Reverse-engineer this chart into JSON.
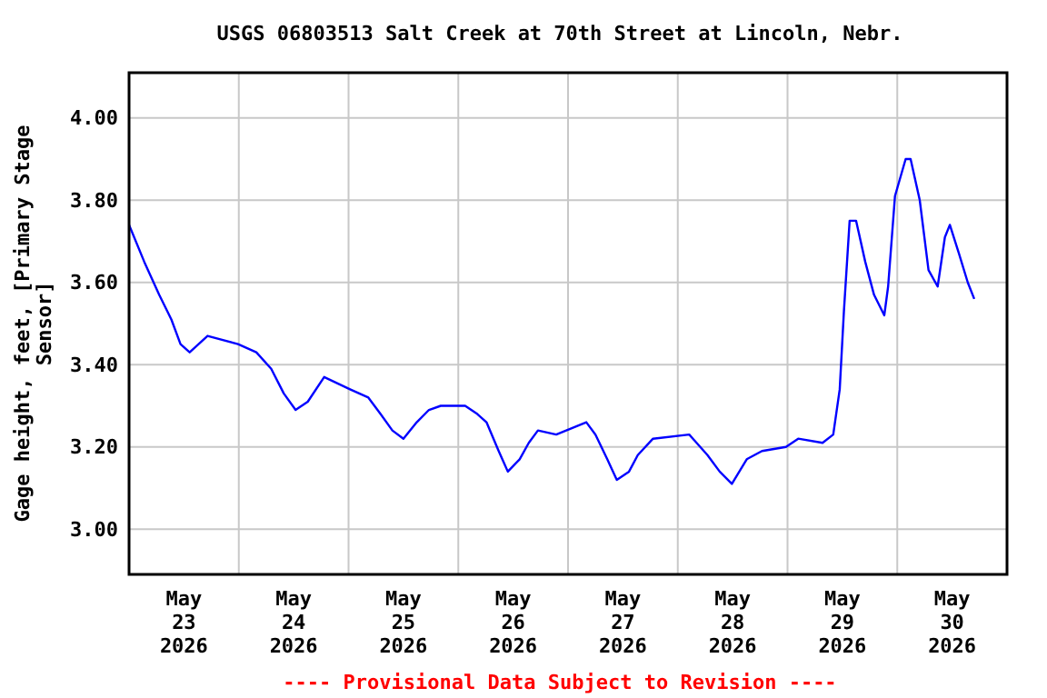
{
  "chart_data": {
    "type": "line",
    "title": "USGS 06803513 Salt Creek at 70th Street at Lincoln, Nebr.",
    "ylabel": "Gage height, feet, [Primary Stage Sensor]",
    "annotations": [
      "---- Provisional Data Subject to Revision ----"
    ],
    "xlim": [
      "2026-05-23T00:00",
      "2026-05-31T00:00"
    ],
    "xticks": [
      {
        "value": "2026-05-23T12:00",
        "label": "May\n23\n2026"
      },
      {
        "value": "2026-05-24T00:00",
        "label": null
      },
      {
        "value": "2026-05-24T12:00",
        "label": "May\n24\n2026"
      },
      {
        "value": "2026-05-25T00:00",
        "label": null
      },
      {
        "value": "2026-05-25T12:00",
        "label": "May\n25\n2026"
      },
      {
        "value": "2026-05-26T00:00",
        "label": null
      },
      {
        "value": "2026-05-26T12:00",
        "label": "May\n26\n2026"
      },
      {
        "value": "2026-05-27T00:00",
        "label": null
      },
      {
        "value": "2026-05-27T12:00",
        "label": "May\n27\n2026"
      },
      {
        "value": "2026-05-28T00:00",
        "label": null
      },
      {
        "value": "2026-05-28T12:00",
        "label": "May\n28\n2026"
      },
      {
        "value": "2026-05-29T00:00",
        "label": null
      },
      {
        "value": "2026-05-29T12:00",
        "label": "May\n29\n2026"
      },
      {
        "value": "2026-05-30T00:00",
        "label": null
      },
      {
        "value": "2026-05-30T12:00",
        "label": "May\n30\n2026"
      }
    ],
    "ylim": [
      2.89,
      4.11
    ],
    "yticks": [
      {
        "value": 3,
        "label": "3.00"
      },
      {
        "value": 3.2,
        "label": "3.20"
      },
      {
        "value": 3.4,
        "label": "3.40"
      },
      {
        "value": 3.6,
        "label": "3.60"
      },
      {
        "value": 3.8,
        "label": "3.80"
      },
      {
        "value": 4,
        "label": "4.00"
      }
    ],
    "grid": true,
    "series": [
      {
        "color": "#0000ff",
        "x": [
          "2026-05-23T00:00",
          "2026-05-23T03:20",
          "2026-05-23T06:35",
          "2026-05-23T09:15",
          "2026-05-23T11:15",
          "2026-05-23T13:15",
          "2026-05-23T17:10",
          "2026-05-23T23:50",
          "2026-05-24T03:50",
          "2026-05-24T07:05",
          "2026-05-24T09:50",
          "2026-05-24T12:25",
          "2026-05-24T15:05",
          "2026-05-24T18:40",
          "2026-05-25T00:20",
          "2026-05-25T04:20",
          "2026-05-25T07:00",
          "2026-05-25T09:35",
          "2026-05-25T12:00",
          "2026-05-25T14:55",
          "2026-05-25T17:35",
          "2026-05-25T20:10",
          "2026-05-26T01:30",
          "2026-05-26T04:10",
          "2026-05-26T06:10",
          "2026-05-26T08:50",
          "2026-05-26T10:50",
          "2026-05-26T13:25",
          "2026-05-26T15:25",
          "2026-05-26T17:25",
          "2026-05-26T21:25",
          "2026-05-27T04:00",
          "2026-05-27T06:00",
          "2026-05-27T08:35",
          "2026-05-27T10:40",
          "2026-05-27T13:20",
          "2026-05-27T15:15",
          "2026-05-27T18:35",
          "2026-05-28T02:30",
          "2026-05-28T06:30",
          "2026-05-28T09:10",
          "2026-05-28T11:50",
          "2026-05-28T15:05",
          "2026-05-28T18:25",
          "2026-05-28T23:40",
          "2026-05-29T02:20",
          "2026-05-29T07:40",
          "2026-05-29T10:00",
          "2026-05-29T11:25",
          "2026-05-29T12:20",
          "2026-05-29T13:35",
          "2026-05-29T15:00",
          "2026-05-29T17:00",
          "2026-05-29T18:55",
          "2026-05-29T21:10",
          "2026-05-29T22:00",
          "2026-05-29T23:30",
          "2026-05-30T01:50",
          "2026-05-30T02:55",
          "2026-05-30T04:55",
          "2026-05-30T06:50",
          "2026-05-30T08:50",
          "2026-05-30T10:25",
          "2026-05-30T11:30",
          "2026-05-30T13:30",
          "2026-05-30T15:25",
          "2026-05-30T16:50"
        ],
        "values": [
          3.74,
          3.65,
          3.57,
          3.51,
          3.45,
          3.43,
          3.47,
          3.45,
          3.43,
          3.39,
          3.33,
          3.29,
          3.31,
          3.37,
          3.34,
          3.32,
          3.28,
          3.24,
          3.22,
          3.26,
          3.29,
          3.3,
          3.3,
          3.28,
          3.26,
          3.19,
          3.14,
          3.17,
          3.21,
          3.24,
          3.23,
          3.26,
          3.23,
          3.17,
          3.12,
          3.14,
          3.18,
          3.22,
          3.23,
          3.18,
          3.14,
          3.11,
          3.17,
          3.19,
          3.2,
          3.22,
          3.21,
          3.23,
          3.34,
          3.53,
          3.75,
          3.75,
          3.65,
          3.57,
          3.52,
          3.59,
          3.81,
          3.9,
          3.9,
          3.8,
          3.63,
          3.59,
          3.71,
          3.74,
          3.67,
          3.6,
          3.56
        ]
      }
    ]
  }
}
